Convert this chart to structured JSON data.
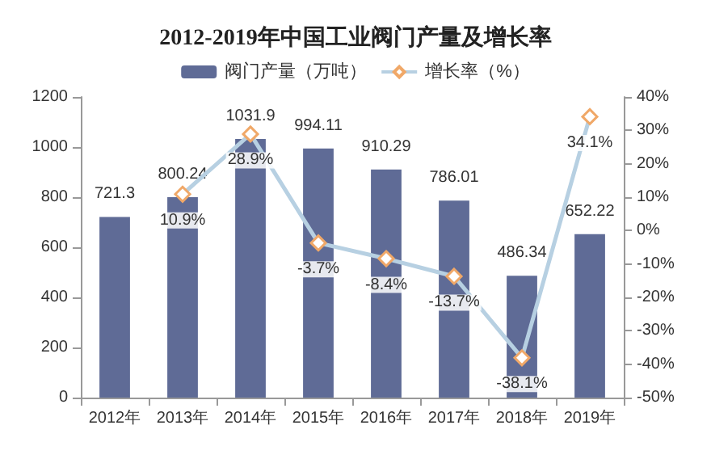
{
  "chart_data": {
    "type": "bar",
    "title": "2012-2019年中国工业阀门产量及增长率",
    "categories": [
      "2012年",
      "2013年",
      "2014年",
      "2015年",
      "2016年",
      "2017年",
      "2018年",
      "2019年"
    ],
    "series": [
      {
        "name": "阀门产量（万吨）",
        "color": "#5f6b96",
        "values": [
          721.3,
          800.24,
          1031.9,
          994.11,
          910.29,
          786.01,
          486.34,
          652.22
        ],
        "value_labels": [
          "721.3",
          "800.24",
          "1031.9",
          "994.11",
          "910.29",
          "786.01",
          "486.34",
          "652.22"
        ]
      },
      {
        "name": "增长率（%）",
        "type": "line",
        "axis": "y2",
        "color": "#b7d0e2",
        "values": [
          null,
          10.9,
          28.9,
          -3.7,
          -8.4,
          -13.7,
          -38.1,
          34.1
        ],
        "value_labels": [
          null,
          "10.9%",
          "28.9%",
          "-3.7%",
          "-8.4%",
          "-13.7%",
          "-38.1%",
          "34.1%"
        ]
      }
    ],
    "ylim": [
      0,
      1200
    ],
    "yticks": [
      0,
      200,
      400,
      600,
      800,
      1000,
      1200
    ],
    "y2lim": [
      -50,
      40
    ],
    "y2ticks": [
      {
        "value": -50,
        "label": "-50%"
      },
      {
        "value": -40,
        "label": "-40%"
      },
      {
        "value": -30,
        "label": "-30%"
      },
      {
        "value": -20,
        "label": "-20%"
      },
      {
        "value": -10,
        "label": "-10%"
      },
      {
        "value": 0,
        "label": "0%"
      },
      {
        "value": 10,
        "label": "10%"
      },
      {
        "value": 20,
        "label": "20%"
      },
      {
        "value": 30,
        "label": "30%"
      },
      {
        "value": 40,
        "label": "40%"
      }
    ],
    "marker": "diamond",
    "legend": "top",
    "grid": false
  }
}
